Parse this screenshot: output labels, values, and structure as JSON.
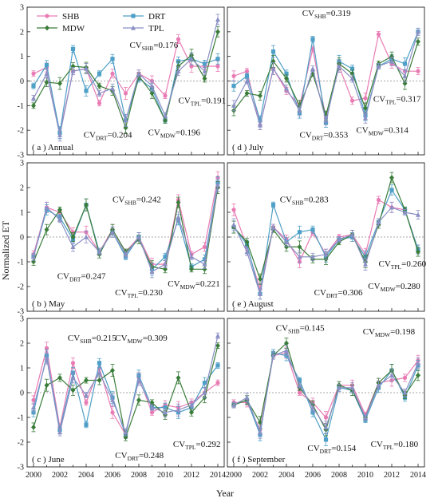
{
  "figure": {
    "ylabel": "Normalized ET",
    "xlabel": "Year"
  },
  "legend": [
    {
      "name": "SHB",
      "color": "#e97bb4",
      "marker": "circle"
    },
    {
      "name": "DRT",
      "color": "#4e9fc7",
      "marker": "square"
    },
    {
      "name": "MDW",
      "color": "#3a7d3a",
      "marker": "diamond"
    },
    {
      "name": "TPL",
      "color": "#8a8fc4",
      "marker": "triangle"
    }
  ],
  "chart_data": [
    {
      "type": "line",
      "panel_label": "( a ) Annual",
      "x": [
        2000,
        2001,
        2002,
        2003,
        2004,
        2005,
        2006,
        2007,
        2008,
        2009,
        2010,
        2011,
        2012,
        2013,
        2014
      ],
      "xticks": [
        2000,
        2002,
        2004,
        2006,
        2008,
        2010,
        2012,
        2014
      ],
      "ylim": [
        -3,
        3
      ],
      "yticks": [
        -3,
        -2,
        -1,
        0,
        1,
        2,
        3
      ],
      "series": [
        {
          "name": "SHB",
          "values": [
            0.3,
            0.55,
            -2.1,
            0.4,
            0.5,
            -0.9,
            0.3,
            -0.5,
            0.3,
            0.0,
            -0.6,
            1.7,
            0.6,
            0.6,
            0.6
          ]
        },
        {
          "name": "DRT",
          "values": [
            -0.2,
            0.65,
            -2.1,
            1.3,
            -0.4,
            0.3,
            0.9,
            -1.6,
            0.1,
            -0.3,
            -1.6,
            0.8,
            0.9,
            0.7,
            0.9
          ]
        },
        {
          "name": "MDW",
          "values": [
            -1.0,
            -0.05,
            -0.1,
            0.6,
            0.55,
            -0.2,
            -0.4,
            -1.9,
            0.2,
            -0.5,
            -1.6,
            0.6,
            1.05,
            0.1,
            2.0
          ]
        },
        {
          "name": "TPL",
          "values": [
            -0.7,
            0.3,
            -2.2,
            0.4,
            0.5,
            -0.5,
            -0.3,
            -1.6,
            0.3,
            -0.2,
            -1.4,
            0.4,
            0.9,
            0.4,
            2.5
          ]
        }
      ],
      "annotations": [
        {
          "cv": "SHB",
          "value": "=0.176",
          "x": 2007.3,
          "y": 1.35
        },
        {
          "cv": "TPL",
          "value": "=0.191",
          "x": 2011.0,
          "y": -0.9
        },
        {
          "cv": "DRT",
          "value": "=0.204",
          "x": 2003.8,
          "y": -2.3
        },
        {
          "cv": "MDW",
          "value": "=0.196",
          "x": 2008.7,
          "y": -2.2
        }
      ]
    },
    {
      "type": "line",
      "panel_label": "( d ) July",
      "x": [
        2000,
        2001,
        2002,
        2003,
        2004,
        2005,
        2006,
        2007,
        2008,
        2009,
        2010,
        2011,
        2012,
        2013,
        2014
      ],
      "xticks": [
        2000,
        2002,
        2004,
        2006,
        2008,
        2010,
        2012,
        2014
      ],
      "ylim": [
        -3,
        3
      ],
      "yticks": [
        -3,
        -2,
        -1,
        0,
        1,
        2,
        3
      ],
      "series": [
        {
          "name": "SHB",
          "values": [
            0.2,
            0.4,
            -1.8,
            0.5,
            -0.4,
            -1.0,
            1.3,
            -1.5,
            0.6,
            -0.8,
            -0.7,
            1.9,
            0.7,
            0.4,
            0.4
          ]
        },
        {
          "name": "DRT",
          "values": [
            -0.2,
            0.2,
            -1.6,
            1.2,
            0.3,
            -1.3,
            1.7,
            -1.7,
            0.8,
            0.5,
            -1.4,
            0.6,
            0.9,
            0.7,
            2.0
          ]
        },
        {
          "name": "MDW",
          "values": [
            -1.2,
            -0.5,
            -0.6,
            0.8,
            0.1,
            -1.0,
            0.3,
            -1.4,
            0.7,
            0.3,
            -1.1,
            0.7,
            1.0,
            -0.1,
            1.6
          ]
        },
        {
          "name": "TPL",
          "values": [
            -1.0,
            0.0,
            -1.8,
            0.5,
            -0.3,
            -1.2,
            0.5,
            -1.6,
            0.6,
            0.1,
            -1.5,
            0.6,
            0.8,
            0.2,
            2.0
          ]
        }
      ],
      "annotations": [
        {
          "cv": "SHB",
          "value": "=0.319",
          "x": 2005.2,
          "y": 2.65
        },
        {
          "cv": "TPL",
          "value": "=0.317",
          "x": 2010.6,
          "y": -0.85
        },
        {
          "cv": "DRT",
          "value": "=0.353",
          "x": 2005.0,
          "y": -2.3
        },
        {
          "cv": "MDW",
          "value": "=0.314",
          "x": 2009.3,
          "y": -2.1
        }
      ]
    },
    {
      "type": "line",
      "panel_label": "( b ) May",
      "x": [
        2000,
        2001,
        2002,
        2003,
        2004,
        2005,
        2006,
        2007,
        2008,
        2009,
        2010,
        2011,
        2012,
        2013,
        2014
      ],
      "xticks": [
        2000,
        2002,
        2004,
        2006,
        2008,
        2010,
        2012,
        2014
      ],
      "ylim": [
        -3,
        3
      ],
      "yticks": [
        -3,
        -2,
        -1,
        0,
        1,
        2,
        3
      ],
      "series": [
        {
          "name": "SHB",
          "values": [
            -0.7,
            1.2,
            1.0,
            0.2,
            0.2,
            -0.6,
            0.3,
            -0.6,
            0.0,
            -1.1,
            -1.1,
            1.5,
            -0.7,
            -0.4,
            2.4
          ]
        },
        {
          "name": "DRT",
          "values": [
            -0.8,
            1.1,
            0.8,
            -0.1,
            1.3,
            -0.6,
            0.2,
            -0.8,
            0.0,
            -1.3,
            -0.8,
            0.7,
            -1.2,
            -0.9,
            2.2
          ]
        },
        {
          "name": "MDW",
          "values": [
            -1.0,
            0.3,
            1.1,
            0.0,
            1.3,
            -0.7,
            0.3,
            -0.6,
            -0.1,
            -1.2,
            -1.3,
            1.4,
            -1.3,
            -1.3,
            2.0
          ]
        },
        {
          "name": "TPL",
          "values": [
            -0.8,
            1.2,
            0.7,
            -0.4,
            0.0,
            -0.6,
            0.2,
            -0.7,
            0.0,
            -1.4,
            -1.1,
            0.8,
            -0.8,
            -1.1,
            2.1
          ]
        }
      ],
      "annotations": [
        {
          "cv": "SHB",
          "value": "=0.242",
          "x": 2006.0,
          "y": 1.4
        },
        {
          "cv": "DRT",
          "value": "=0.247",
          "x": 2001.8,
          "y": -1.7
        },
        {
          "cv": "TPL",
          "value": "=0.230",
          "x": 2006.2,
          "y": -2.35
        },
        {
          "cv": "MDW",
          "value": "=0.221",
          "x": 2010.2,
          "y": -2.0
        }
      ]
    },
    {
      "type": "line",
      "panel_label": "( e ) August",
      "x": [
        2000,
        2001,
        2002,
        2003,
        2004,
        2005,
        2006,
        2007,
        2008,
        2009,
        2010,
        2011,
        2012,
        2013,
        2014
      ],
      "xticks": [
        2000,
        2002,
        2004,
        2006,
        2008,
        2010,
        2012,
        2014
      ],
      "ylim": [
        -3,
        3
      ],
      "yticks": [
        -3,
        -2,
        -1,
        0,
        1,
        2,
        3
      ],
      "series": [
        {
          "name": "SHB",
          "values": [
            1.1,
            -0.4,
            -2.1,
            0.4,
            -0.1,
            -1.0,
            0.2,
            -0.7,
            0.0,
            0.1,
            -0.7,
            1.5,
            1.2,
            1.1,
            -0.5
          ]
        },
        {
          "name": "DRT",
          "values": [
            0.4,
            -0.3,
            -2.3,
            1.3,
            -0.2,
            0.2,
            0.3,
            -0.8,
            -0.1,
            0.0,
            -0.8,
            0.6,
            1.9,
            1.1,
            -0.5
          ]
        },
        {
          "name": "MDW",
          "values": [
            0.4,
            -0.2,
            -1.7,
            0.3,
            -0.4,
            -0.4,
            -0.9,
            -0.9,
            -0.2,
            0.1,
            -1.0,
            0.5,
            2.4,
            1.1,
            -0.6
          ]
        },
        {
          "name": "TPL",
          "values": [
            0.5,
            -0.6,
            -2.3,
            0.4,
            -0.2,
            -0.8,
            -0.8,
            -0.7,
            -0.1,
            0.1,
            -1.1,
            0.6,
            1.2,
            1.0,
            0.9
          ]
        }
      ],
      "annotations": [
        {
          "cv": "SHB",
          "value": "=0.283",
          "x": 2003.5,
          "y": 1.4
        },
        {
          "cv": "TPL",
          "value": "=0.260",
          "x": 2011.0,
          "y": -1.2
        },
        {
          "cv": "DRT",
          "value": "=0.306",
          "x": 2006.1,
          "y": -2.35
        },
        {
          "cv": "MDW",
          "value": "=0.280",
          "x": 2010.2,
          "y": -2.1
        }
      ]
    },
    {
      "type": "line",
      "panel_label": "( c ) June",
      "x": [
        2000,
        2001,
        2002,
        2003,
        2004,
        2005,
        2006,
        2007,
        2008,
        2009,
        2010,
        2011,
        2012,
        2013,
        2014
      ],
      "xticks": [
        2000,
        2002,
        2004,
        2006,
        2008,
        2010,
        2012,
        2014
      ],
      "ylim": [
        -3,
        3
      ],
      "yticks": [
        -3,
        -2,
        -1,
        0,
        1,
        2,
        3
      ],
      "series": [
        {
          "name": "SHB",
          "values": [
            -0.3,
            1.8,
            -1.4,
            1.2,
            -0.4,
            1.0,
            -0.8,
            -1.7,
            0.6,
            -0.8,
            -0.5,
            -0.6,
            -0.4,
            0.0,
            0.4
          ]
        },
        {
          "name": "DRT",
          "values": [
            -0.8,
            1.5,
            -1.5,
            0.8,
            -1.3,
            1.2,
            -0.2,
            -1.7,
            0.7,
            -0.6,
            -0.6,
            -0.8,
            -0.6,
            0.4,
            1.1
          ]
        },
        {
          "name": "MDW",
          "values": [
            -1.4,
            0.3,
            0.6,
            0.1,
            0.5,
            0.5,
            0.9,
            -1.8,
            -0.3,
            -0.4,
            -0.9,
            0.6,
            -0.8,
            -0.2,
            1.9
          ]
        },
        {
          "name": "TPL",
          "values": [
            -0.6,
            1.4,
            -1.6,
            0.6,
            -0.1,
            0.8,
            -0.3,
            -1.6,
            0.5,
            -0.6,
            -0.8,
            -0.7,
            -0.5,
            0.0,
            2.3
          ]
        }
      ],
      "annotations": [
        {
          "cv": "SHB",
          "value": "=0.215",
          "x": 2002.6,
          "y": 2.1
        },
        {
          "cv": "MDW",
          "value": "=0.309",
          "x": 2006.2,
          "y": 2.1
        },
        {
          "cv": "TPL",
          "value": "=0.292",
          "x": 2010.6,
          "y": -2.2
        },
        {
          "cv": "DRT",
          "value": "=0.248",
          "x": 2006.2,
          "y": -2.65
        }
      ]
    },
    {
      "type": "line",
      "panel_label": "( f ) September",
      "x": [
        2000,
        2001,
        2002,
        2003,
        2004,
        2005,
        2006,
        2007,
        2008,
        2009,
        2010,
        2011,
        2012,
        2013,
        2014
      ],
      "xticks": [
        2000,
        2002,
        2004,
        2006,
        2008,
        2010,
        2012,
        2014
      ],
      "ylim": [
        -3,
        3
      ],
      "yticks": [
        -3,
        -2,
        -1,
        0,
        1,
        2,
        3
      ],
      "series": [
        {
          "name": "SHB",
          "values": [
            -0.4,
            -0.4,
            -1.5,
            1.5,
            1.6,
            0.0,
            -0.4,
            -1.0,
            0.3,
            0.3,
            -0.9,
            0.4,
            0.5,
            0.6,
            1.3
          ]
        },
        {
          "name": "DRT",
          "values": [
            -0.5,
            -0.3,
            -1.7,
            1.6,
            1.5,
            0.5,
            -0.8,
            -1.9,
            0.2,
            0.1,
            -1.1,
            0.2,
            0.9,
            -0.2,
            1.1
          ]
        },
        {
          "name": "MDW",
          "values": [
            -0.5,
            -0.3,
            -1.2,
            1.5,
            2.0,
            0.2,
            -0.5,
            -1.5,
            0.3,
            0.1,
            -1.0,
            0.4,
            0.9,
            -0.1,
            0.7
          ]
        },
        {
          "name": "TPL",
          "values": [
            -0.5,
            -0.2,
            -1.6,
            1.5,
            1.7,
            0.3,
            -0.6,
            -1.4,
            0.2,
            0.2,
            -1.0,
            0.3,
            0.7,
            0.0,
            1.2
          ]
        }
      ],
      "annotations": [
        {
          "cv": "SHB",
          "value": "=0.145",
          "x": 2003.2,
          "y": 2.5
        },
        {
          "cv": "MDW",
          "value": "=0.198",
          "x": 2009.8,
          "y": 2.35
        },
        {
          "cv": "DRT",
          "value": "=0.154",
          "x": 2005.6,
          "y": -2.35
        },
        {
          "cv": "TPL",
          "value": "=0.180",
          "x": 2010.4,
          "y": -2.2
        }
      ]
    }
  ]
}
